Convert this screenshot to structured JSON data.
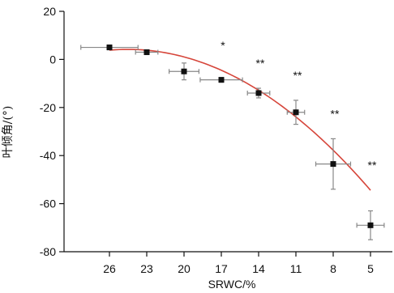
{
  "chart_data": {
    "type": "scatter",
    "title": "",
    "xlabel": "SRWC/%",
    "ylabel": "叶倾角/(°)",
    "x_reversed": true,
    "xlim": [
      30,
      4
    ],
    "ylim": [
      -80,
      20
    ],
    "x_ticks": [
      26,
      23,
      20,
      17,
      14,
      11,
      8,
      5
    ],
    "y_ticks": [
      20,
      0,
      -20,
      -40,
      -60,
      -80
    ],
    "grid": false,
    "legend": "none",
    "series": [
      {
        "points": [
          {
            "x": 26.0,
            "y": 5.0,
            "xerr": 2.3,
            "yerr": 1.0,
            "sig": ""
          },
          {
            "x": 23.0,
            "y": 3.0,
            "xerr": 0.9,
            "yerr": 1.0,
            "sig": ""
          },
          {
            "x": 20.0,
            "y": -5.0,
            "xerr": 1.2,
            "yerr": 3.5,
            "sig": ""
          },
          {
            "x": 17.0,
            "y": -8.5,
            "xerr": 1.7,
            "yerr": 1.0,
            "sig": "*"
          },
          {
            "x": 14.0,
            "y": -14.0,
            "xerr": 0.9,
            "yerr": 2.0,
            "sig": "**"
          },
          {
            "x": 11.0,
            "y": -22.0,
            "xerr": 0.7,
            "yerr": 5.0,
            "sig": "**"
          },
          {
            "x": 8.0,
            "y": -43.5,
            "xerr": 1.4,
            "yerr": 10.5,
            "sig": "**"
          },
          {
            "x": 5.0,
            "y": -69.0,
            "xerr": 1.1,
            "yerr": 6.0,
            "sig": "**"
          }
        ]
      }
    ],
    "fit": {
      "type": "quadratic",
      "from": 26,
      "to": 5,
      "points": [
        [
          26,
          5.0
        ],
        [
          23,
          3.2
        ],
        [
          20,
          0.0
        ],
        [
          17,
          -5.5
        ],
        [
          14,
          -13.0
        ],
        [
          11,
          -22.5
        ],
        [
          8,
          -35.5
        ],
        [
          5,
          -56.5
        ]
      ],
      "color": "#d6453a"
    },
    "colors": {
      "marker": "#111111",
      "errorbar": "#888888",
      "axis": "#111111"
    }
  }
}
